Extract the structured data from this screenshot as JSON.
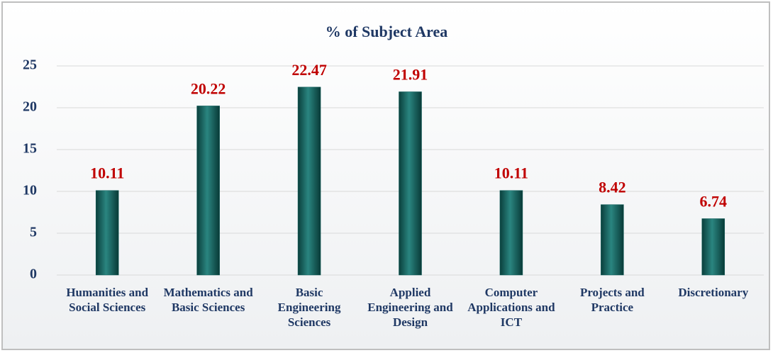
{
  "chart_data": {
    "type": "bar",
    "title": "% of Subject Area",
    "categories": [
      "Humanities and Social Sciences",
      "Mathematics and Basic Sciences",
      "Basic Engineering Sciences",
      "Applied Engineering and Design",
      "Computer Applications and ICT",
      "Projects and Practice",
      "Discretionary"
    ],
    "values": [
      10.11,
      20.22,
      22.47,
      21.91,
      10.11,
      8.42,
      6.74
    ],
    "color": "#0f5f5b",
    "label_color": "#c00000",
    "ylim": [
      0,
      25
    ],
    "yticks": [
      0,
      5,
      10,
      15,
      20,
      25
    ],
    "grid": true
  }
}
